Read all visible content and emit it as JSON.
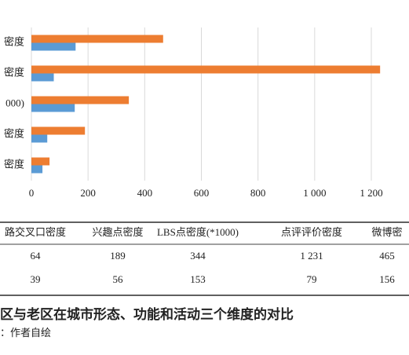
{
  "chart_data": {
    "type": "bar",
    "orientation": "horizontal",
    "categories": [
      "密度",
      "密度",
      "000)",
      "密度",
      "密度"
    ],
    "series": [
      {
        "color": "#ed7d31",
        "values": [
          64,
          189,
          344,
          1231,
          465
        ],
        "value_labels": [
          "64",
          "189",
          "344",
          "1 231",
          "465"
        ]
      },
      {
        "color": "#5b9bd5",
        "values": [
          39,
          56,
          153,
          79,
          156
        ]
      }
    ],
    "xlim": [
      0,
      1200
    ],
    "xticks": [
      0,
      200,
      400,
      600,
      800,
      {
        "value": 1000,
        "label": "1 000"
      },
      {
        "value": 1200,
        "label": "1 200"
      }
    ],
    "grid": true
  },
  "table": {
    "columns": [
      "路交叉口密度",
      "兴趣点密度",
      "LBS点密度(*1000)",
      "点评评价密度",
      "微博密"
    ]
  },
  "caption": {
    "title": "区与老区在城市形态、功能和活动三个维度的对比",
    "source": "：作者自绘"
  }
}
